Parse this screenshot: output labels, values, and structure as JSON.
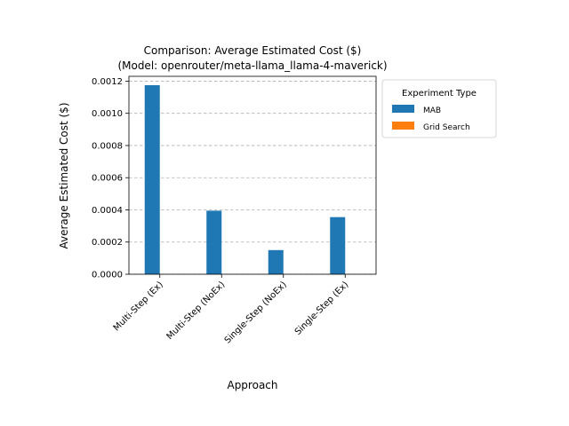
{
  "chart_data": {
    "type": "bar",
    "title": "Comparison: Average Estimated Cost ($)",
    "subtitle": "(Model: openrouter/meta-llama_llama-4-maverick)",
    "xlabel": "Approach",
    "ylabel": "Average Estimated Cost ($)",
    "categories": [
      "Multi-Step (Ex)",
      "Multi-Step (NoEx)",
      "Single-Step (NoEx)",
      "Single-Step (Ex)"
    ],
    "series": [
      {
        "name": "MAB",
        "color": "#1f77b4",
        "values": [
          0.001175,
          0.000395,
          0.00015,
          0.000355
        ]
      },
      {
        "name": "Grid Search",
        "color": "#ff7f0e",
        "values": [
          0,
          0,
          0,
          0
        ]
      }
    ],
    "ylim": [
      0,
      0.00123
    ],
    "yticks": [
      "0.0000",
      "0.0002",
      "0.0004",
      "0.0006",
      "0.0008",
      "0.0010",
      "0.0012"
    ],
    "ytick_values": [
      0,
      0.0002,
      0.0004,
      0.0006,
      0.0008,
      0.001,
      0.0012
    ],
    "grid": "y-dashed",
    "legend": {
      "title": "Experiment Type",
      "placement": "outside-right"
    }
  }
}
